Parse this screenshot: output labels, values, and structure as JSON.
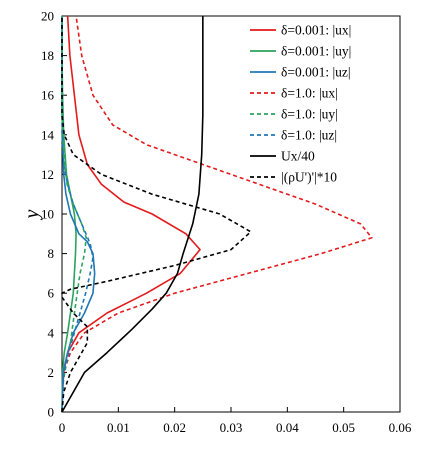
{
  "chart_data": {
    "type": "line",
    "title": "",
    "xlabel": "",
    "ylabel": "y",
    "xlim": [
      0,
      0.06
    ],
    "ylim": [
      0,
      20
    ],
    "xticks": [
      "0",
      "0.01",
      "0.02",
      "0.03",
      "0.04",
      "0.05",
      "0.06"
    ],
    "yticks": [
      "0",
      "2",
      "4",
      "6",
      "8",
      "10",
      "12",
      "14",
      "16",
      "18",
      "20"
    ],
    "grid": false,
    "legend_position": "top-right",
    "series": [
      {
        "name": "δ=0.001: |ux|",
        "color": "#e41a1c",
        "dash": "solid",
        "points": [
          [
            0.0,
            0
          ],
          [
            0.0001,
            1
          ],
          [
            0.0003,
            2
          ],
          [
            0.001,
            3
          ],
          [
            0.003,
            4
          ],
          [
            0.008,
            5
          ],
          [
            0.015,
            6
          ],
          [
            0.021,
            7
          ],
          [
            0.0245,
            8.2
          ],
          [
            0.022,
            9
          ],
          [
            0.016,
            10
          ],
          [
            0.011,
            10.6
          ],
          [
            0.007,
            11.5
          ],
          [
            0.0045,
            12.5
          ],
          [
            0.003,
            14
          ],
          [
            0.0022,
            16
          ],
          [
            0.0014,
            18
          ],
          [
            0.001,
            20
          ]
        ]
      },
      {
        "name": "δ=0.001: |uy|",
        "color": "#2ca25f",
        "dash": "solid",
        "points": [
          [
            0.0,
            0
          ],
          [
            0.0001,
            2
          ],
          [
            0.0004,
            3
          ],
          [
            0.001,
            4
          ],
          [
            0.0015,
            5
          ],
          [
            0.002,
            6
          ],
          [
            0.0022,
            7
          ],
          [
            0.0024,
            8
          ],
          [
            0.0025,
            9
          ],
          [
            0.0022,
            10
          ],
          [
            0.0015,
            11
          ],
          [
            0.0008,
            12
          ],
          [
            0.0003,
            14
          ],
          [
            0.0001,
            16
          ],
          [
            0.0,
            18
          ],
          [
            0.0,
            20
          ]
        ]
      },
      {
        "name": "δ=0.001: |uz|",
        "color": "#1f77b4",
        "dash": "solid",
        "points": [
          [
            0.0,
            0
          ],
          [
            0.0002,
            2
          ],
          [
            0.001,
            3
          ],
          [
            0.002,
            4
          ],
          [
            0.004,
            5
          ],
          [
            0.0055,
            6
          ],
          [
            0.0058,
            7
          ],
          [
            0.0055,
            8
          ],
          [
            0.0045,
            8.6
          ],
          [
            0.003,
            9
          ],
          [
            0.0015,
            10
          ],
          [
            0.0007,
            11
          ],
          [
            0.0003,
            12
          ],
          [
            0.0001,
            14
          ],
          [
            0.0,
            16
          ],
          [
            0.0,
            18
          ],
          [
            0.0,
            20
          ]
        ]
      },
      {
        "name": "δ=1.0: |ux|",
        "color": "#e41a1c",
        "dash": "dashed",
        "points": [
          [
            0.0,
            0
          ],
          [
            0.0003,
            2
          ],
          [
            0.0015,
            3
          ],
          [
            0.004,
            4
          ],
          [
            0.01,
            5
          ],
          [
            0.02,
            6
          ],
          [
            0.033,
            7
          ],
          [
            0.046,
            8
          ],
          [
            0.055,
            8.8
          ],
          [
            0.053,
            9.5
          ],
          [
            0.045,
            10.5
          ],
          [
            0.035,
            11.5
          ],
          [
            0.025,
            12.5
          ],
          [
            0.015,
            13.5
          ],
          [
            0.009,
            14.5
          ],
          [
            0.0055,
            16
          ],
          [
            0.0035,
            18
          ],
          [
            0.0025,
            20
          ]
        ]
      },
      {
        "name": "δ=1.0: |uy|",
        "color": "#2ca25f",
        "dash": "dashed",
        "points": [
          [
            0.0,
            0
          ],
          [
            0.0002,
            1.5
          ],
          [
            0.0008,
            2.5
          ],
          [
            0.0015,
            3.5
          ],
          [
            0.0022,
            5
          ],
          [
            0.0027,
            6
          ],
          [
            0.0032,
            7
          ],
          [
            0.004,
            8
          ],
          [
            0.0043,
            8.8
          ],
          [
            0.0035,
            9.5
          ],
          [
            0.002,
            10.5
          ],
          [
            0.0009,
            11.5
          ],
          [
            0.0003,
            13
          ],
          [
            0.0,
            15
          ],
          [
            0.0,
            20
          ]
        ]
      },
      {
        "name": "δ=1.0: |uz|",
        "color": "#1f77b4",
        "dash": "dashed",
        "points": [
          [
            0.0,
            0
          ],
          [
            0.0003,
            2
          ],
          [
            0.0012,
            3
          ],
          [
            0.0022,
            4
          ],
          [
            0.0032,
            5
          ],
          [
            0.0042,
            6
          ],
          [
            0.005,
            7
          ],
          [
            0.0055,
            7.8
          ],
          [
            0.005,
            8.5
          ],
          [
            0.0035,
            9.5
          ],
          [
            0.002,
            10.5
          ],
          [
            0.001,
            11.5
          ],
          [
            0.0003,
            12.5
          ],
          [
            0.0,
            14
          ],
          [
            0.0,
            20
          ]
        ]
      },
      {
        "name": "Ux/40",
        "color": "#000000",
        "dash": "solid",
        "points": [
          [
            0.0,
            0
          ],
          [
            0.004,
            2
          ],
          [
            0.008,
            3
          ],
          [
            0.0125,
            4.2
          ],
          [
            0.016,
            5.2
          ],
          [
            0.0185,
            6
          ],
          [
            0.0205,
            7
          ],
          [
            0.0215,
            8
          ],
          [
            0.0232,
            9.5
          ],
          [
            0.0243,
            11
          ],
          [
            0.0248,
            13
          ],
          [
            0.025,
            15
          ],
          [
            0.025,
            20
          ]
        ]
      },
      {
        "name": "|(ρU')'|*10",
        "color": "#000000",
        "dash": "dashed",
        "points": [
          [
            0.0,
            0
          ],
          [
            0.0003,
            1
          ],
          [
            0.0015,
            2
          ],
          [
            0.0045,
            3.5
          ],
          [
            0.0045,
            4.3
          ],
          [
            0.002,
            5
          ],
          [
            0.0,
            5.8
          ],
          [
            0.0,
            6
          ],
          [
            0.0015,
            6.2
          ],
          [
            0.008,
            6.6
          ],
          [
            0.02,
            7.4
          ],
          [
            0.03,
            8.2
          ],
          [
            0.0335,
            9.1
          ],
          [
            0.028,
            10
          ],
          [
            0.016,
            11
          ],
          [
            0.007,
            12
          ],
          [
            0.002,
            13
          ],
          [
            0.0004,
            14
          ],
          [
            0.0,
            15
          ],
          [
            0.0,
            20
          ]
        ]
      }
    ]
  }
}
